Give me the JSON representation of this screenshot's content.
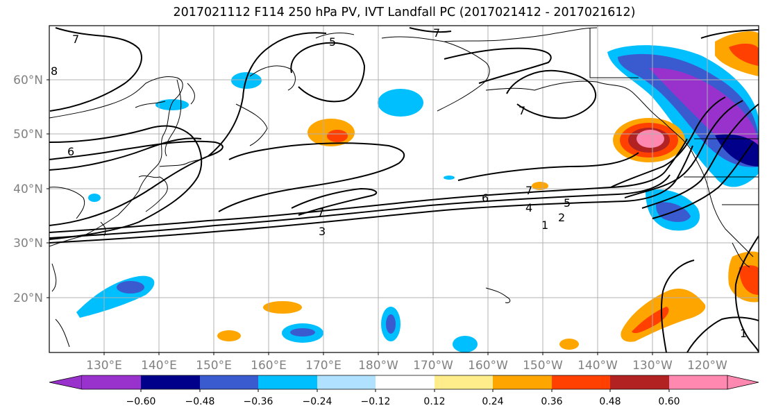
{
  "title": "2017021112 F114 250 hPa PV, IVT Landfall PC (2017021412 - 2017021612)",
  "lon_labels": [
    "130°E",
    "140°E",
    "150°E",
    "160°E",
    "170°E",
    "180°W",
    "170°W",
    "160°W",
    "150°W",
    "140°W",
    "130°W",
    "120°W"
  ],
  "lat_labels": [
    "60°N",
    "50°N",
    "40°N",
    "30°N",
    "20°N"
  ],
  "contour_labels": [
    "7",
    "7",
    "5",
    "8",
    "6",
    "7",
    "7",
    "7",
    "6",
    "4",
    "5",
    "2",
    "1",
    "3",
    "1"
  ],
  "colorbar": {
    "tick_labels": [
      "−0.60",
      "−0.48",
      "−0.36",
      "−0.24",
      "−0.12",
      "0.12",
      "0.24",
      "0.36",
      "0.48",
      "0.60"
    ],
    "colors": [
      "#9932cc",
      "#00008b",
      "#3a5bcf",
      "#00bfff",
      "#b0e2ff",
      "#ffffff",
      "#ffec8b",
      "#ffa500",
      "#ff4000",
      "#b22222",
      "#ff88b0"
    ]
  },
  "colors": {
    "grid": "#b0b0b0",
    "contour": "#000000",
    "coast": "#000000",
    "axis_label": "#808080"
  }
}
